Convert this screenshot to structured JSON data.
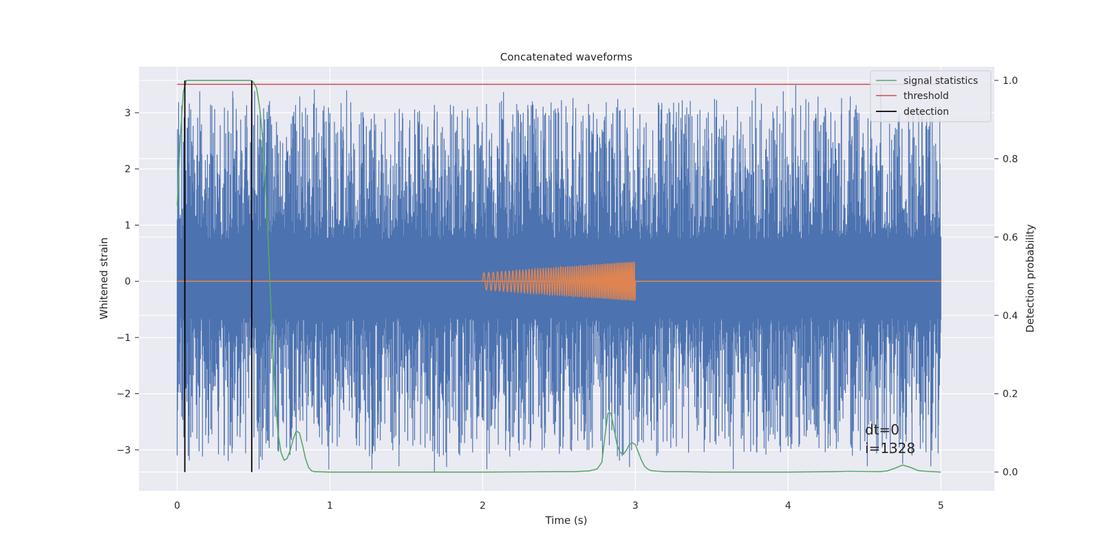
{
  "chart_data": {
    "type": "line",
    "title": "Concatenated waveforms",
    "xlabel": "Time (s)",
    "ylabel_left": "Whitened strain",
    "ylabel_right": "Detection probability",
    "xlim": [
      -0.25,
      5.35
    ],
    "ylim_left": [
      -3.73,
      3.82
    ],
    "ylim_right": [
      -0.048,
      1.035
    ],
    "x_ticks": [
      0,
      1,
      2,
      3,
      4,
      5
    ],
    "y_ticks_left": [
      -3,
      -2,
      -1,
      0,
      1,
      2,
      3
    ],
    "y_ticks_right": [
      0.0,
      0.2,
      0.4,
      0.6,
      0.8,
      1.0
    ],
    "y_tick_labels_left": [
      "−3",
      "−2",
      "−1",
      "0",
      "1",
      "2",
      "3"
    ],
    "y_tick_labels_right": [
      "0.0",
      "0.2",
      "0.4",
      "0.6",
      "0.8",
      "1.0"
    ],
    "grid": true,
    "legend_position": "top-right",
    "colors": {
      "background": "#eaeaf2",
      "grid": "#ffffff",
      "strain": "#4c72b0",
      "injection": "#dd8452",
      "signal_statistics": "#55a868",
      "threshold": "#c44e52",
      "detection": "#000000"
    },
    "series": [
      {
        "name": "",
        "axis": "left",
        "kind": "noise",
        "x_range": [
          0,
          5
        ],
        "core_band": [
          -0.65,
          0.75
        ],
        "spike_extent": [
          -3.4,
          3.5
        ]
      },
      {
        "name": "",
        "axis": "left",
        "kind": "chirp",
        "x_range": [
          2.0,
          3.0
        ],
        "amplitude_start": 0.15,
        "amplitude_end": 0.35,
        "baseline_x_range": [
          0,
          5
        ]
      },
      {
        "name": "signal statistics",
        "axis": "right",
        "x": [
          0.0,
          0.02,
          0.04,
          0.06,
          0.08,
          0.1,
          0.15,
          0.2,
          0.3,
          0.4,
          0.45,
          0.48,
          0.5,
          0.52,
          0.54,
          0.56,
          0.58,
          0.6,
          0.62,
          0.64,
          0.66,
          0.68,
          0.7,
          0.72,
          0.74,
          0.76,
          0.78,
          0.8,
          0.82,
          0.84,
          0.86,
          0.88,
          0.9,
          1.0,
          1.5,
          2.0,
          2.5,
          2.6,
          2.7,
          2.75,
          2.78,
          2.8,
          2.82,
          2.84,
          2.86,
          2.88,
          2.9,
          2.92,
          2.94,
          2.96,
          2.98,
          3.0,
          3.02,
          3.04,
          3.06,
          3.08,
          3.1,
          3.15,
          3.2,
          3.3,
          3.5,
          4.0,
          4.3,
          4.4,
          4.6,
          4.65,
          4.7,
          4.75,
          4.8,
          4.85,
          4.9,
          5.0
        ],
        "values": [
          0.68,
          0.85,
          0.97,
          1.0,
          1.0,
          1.0,
          1.0,
          1.0,
          1.0,
          1.0,
          1.0,
          1.0,
          0.995,
          0.98,
          0.93,
          0.85,
          0.72,
          0.55,
          0.36,
          0.2,
          0.1,
          0.05,
          0.03,
          0.035,
          0.055,
          0.085,
          0.105,
          0.1,
          0.07,
          0.035,
          0.012,
          0.003,
          0.001,
          0.0,
          0.0,
          0.0,
          0.001,
          0.001,
          0.003,
          0.008,
          0.025,
          0.09,
          0.15,
          0.15,
          0.11,
          0.07,
          0.05,
          0.045,
          0.055,
          0.07,
          0.075,
          0.07,
          0.05,
          0.03,
          0.015,
          0.008,
          0.004,
          0.002,
          0.001,
          0.001,
          0.0,
          0.0,
          0.001,
          0.002,
          0.001,
          0.003,
          0.01,
          0.018,
          0.012,
          0.004,
          0.002,
          0.0
        ]
      },
      {
        "name": "threshold",
        "axis": "right",
        "x": [
          0,
          5
        ],
        "values": [
          0.99,
          0.99
        ]
      },
      {
        "name": "detection",
        "axis": "right",
        "x_positions": [
          0.05,
          0.488
        ],
        "range": [
          0.0,
          1.0
        ]
      }
    ],
    "annotations": [
      {
        "text": "dt=0",
        "x": 4.5,
        "y": -3.0
      },
      {
        "text": "i=1328",
        "x": 4.5,
        "y": -3.35
      }
    ]
  }
}
